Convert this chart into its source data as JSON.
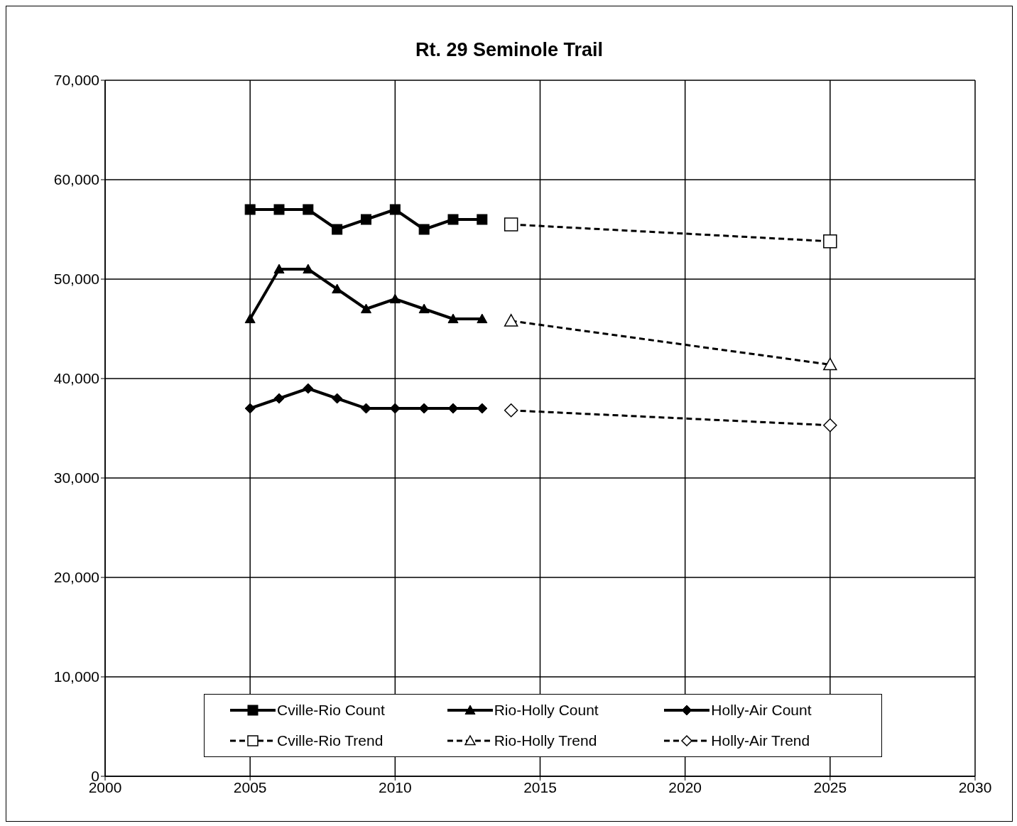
{
  "chart_data": {
    "type": "line",
    "title": "Rt. 29 Seminole Trail",
    "xlim": [
      2000,
      2030
    ],
    "xticks": [
      2000,
      2005,
      2010,
      2015,
      2020,
      2025,
      2030
    ],
    "ylim": [
      0,
      70000
    ],
    "yticks": [
      0,
      {
        "value": 10000,
        "label": "10,000"
      },
      {
        "value": 20000,
        "label": "20,000"
      },
      {
        "value": 30000,
        "label": "30,000"
      },
      {
        "value": 40000,
        "label": "40,000"
      },
      {
        "value": 50000,
        "label": "50,000"
      },
      {
        "value": 60000,
        "label": "60,000"
      },
      {
        "value": 70000,
        "label": "70,000"
      }
    ],
    "grid": true,
    "legend": "bottom",
    "series": [
      {
        "name": "Cville-Rio Count",
        "color": "#000000",
        "marker": "square",
        "line_style": "solid",
        "x": [
          2005,
          2006,
          2007,
          2008,
          2009,
          2010,
          2011,
          2012,
          2013
        ],
        "values": [
          57000,
          57000,
          57000,
          55000,
          56000,
          57000,
          55000,
          56000,
          56000
        ]
      },
      {
        "name": "Rio-Holly Count",
        "color": "#000000",
        "marker": "triangle",
        "line_style": "solid",
        "x": [
          2005,
          2006,
          2007,
          2008,
          2009,
          2010,
          2011,
          2012,
          2013
        ],
        "values": [
          46000,
          51000,
          51000,
          49000,
          47000,
          48000,
          47000,
          46000,
          46000
        ]
      },
      {
        "name": "Holly-Air Count",
        "color": "#000000",
        "marker": "diamond",
        "line_style": "solid",
        "x": [
          2005,
          2006,
          2007,
          2008,
          2009,
          2010,
          2011,
          2012,
          2013
        ],
        "values": [
          37000,
          38000,
          39000,
          38000,
          37000,
          37000,
          37000,
          37000,
          37000
        ]
      },
      {
        "name": "Cville-Rio Trend",
        "color": "#000000",
        "marker": "square",
        "line_style": "dashed",
        "x": [
          2014,
          2025
        ],
        "values": [
          55500,
          53800
        ]
      },
      {
        "name": "Rio-Holly Trend",
        "color": "#000000",
        "marker": "triangle",
        "line_style": "dashed",
        "x": [
          2014,
          2025
        ],
        "values": [
          45800,
          41400
        ]
      },
      {
        "name": "Holly-Air Trend",
        "color": "#000000",
        "marker": "diamond",
        "line_style": "dashed",
        "x": [
          2014,
          2025
        ],
        "values": [
          36800,
          35300
        ]
      }
    ]
  }
}
